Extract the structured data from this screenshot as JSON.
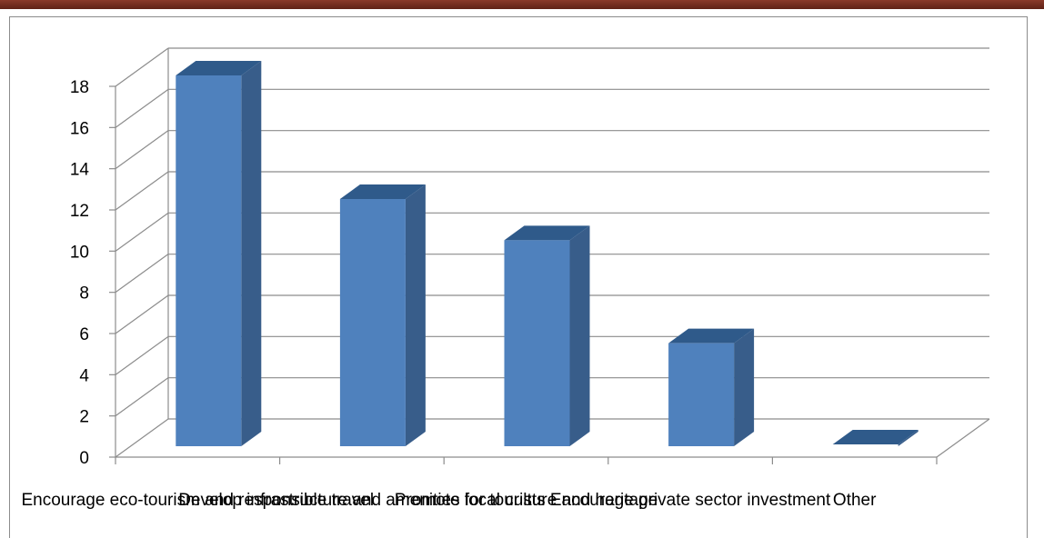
{
  "colors": {
    "bar_front": "#4f81bd",
    "bar_side": "#385d8a",
    "bar_top": "#2f5a8a",
    "grid": "#8c8c8c",
    "top_bar": "#7b3224"
  },
  "chart_data": {
    "type": "bar",
    "title": "",
    "xlabel": "",
    "ylabel": "",
    "categories": [
      "Encourage eco-tourism and responsible travel",
      "Develop infrastructure and amenities for tourists",
      "Promote local culture and heritage",
      "Encourage private sector investment",
      "Other"
    ],
    "values": [
      18,
      12,
      10,
      5,
      0
    ],
    "ylim": [
      0,
      18
    ],
    "yticks": [
      0,
      2,
      4,
      6,
      8,
      10,
      12,
      14,
      16,
      18
    ],
    "grid": true,
    "legend": "none",
    "style": "3d-clustered-column"
  }
}
